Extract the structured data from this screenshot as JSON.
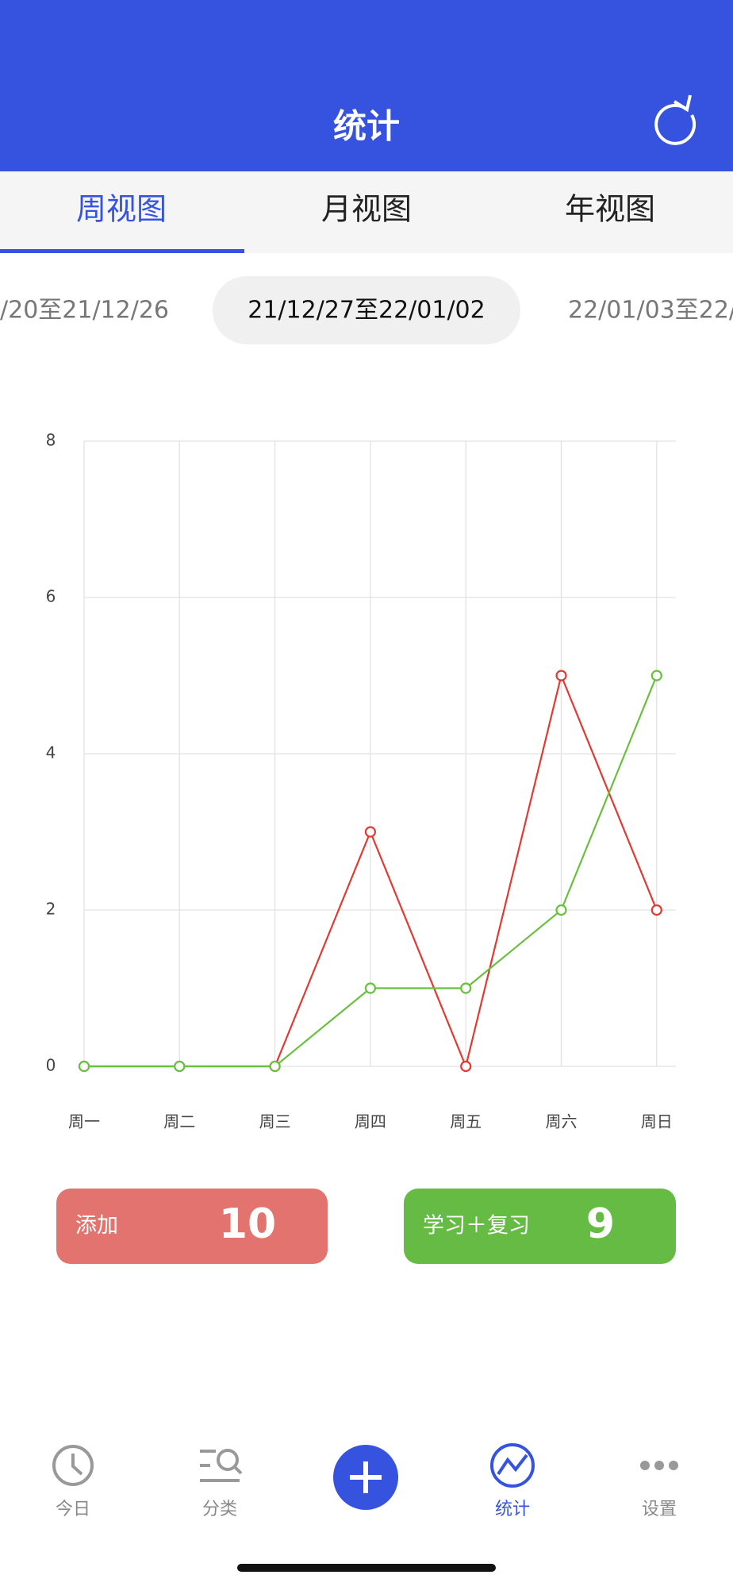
{
  "header": {
    "title": "统计"
  },
  "tabs": [
    "周视图",
    "月视图",
    "年视图"
  ],
  "date_ranges": [
    "/20至21/12/26",
    "21/12/27至22/01/02",
    "22/01/03至22/"
  ],
  "chart_data": {
    "type": "line",
    "categories": [
      "周一",
      "周二",
      "周三",
      "周四",
      "周五",
      "周六",
      "周日"
    ],
    "series": [
      {
        "color": "#e03a33",
        "values": [
          0,
          0,
          0,
          3,
          0,
          5,
          2
        ]
      },
      {
        "color": "#6abf3f",
        "values": [
          0,
          0,
          0,
          1,
          1,
          2,
          5
        ]
      }
    ],
    "ylim": [
      0,
      8
    ],
    "yticks": [
      0,
      2,
      4,
      6,
      8
    ],
    "grid": true
  },
  "summary": [
    {
      "label": "添加",
      "value": 10
    },
    {
      "label": "学习＋复习",
      "value": 9
    }
  ],
  "nav": [
    "今日",
    "分类",
    "统计",
    "设置"
  ]
}
